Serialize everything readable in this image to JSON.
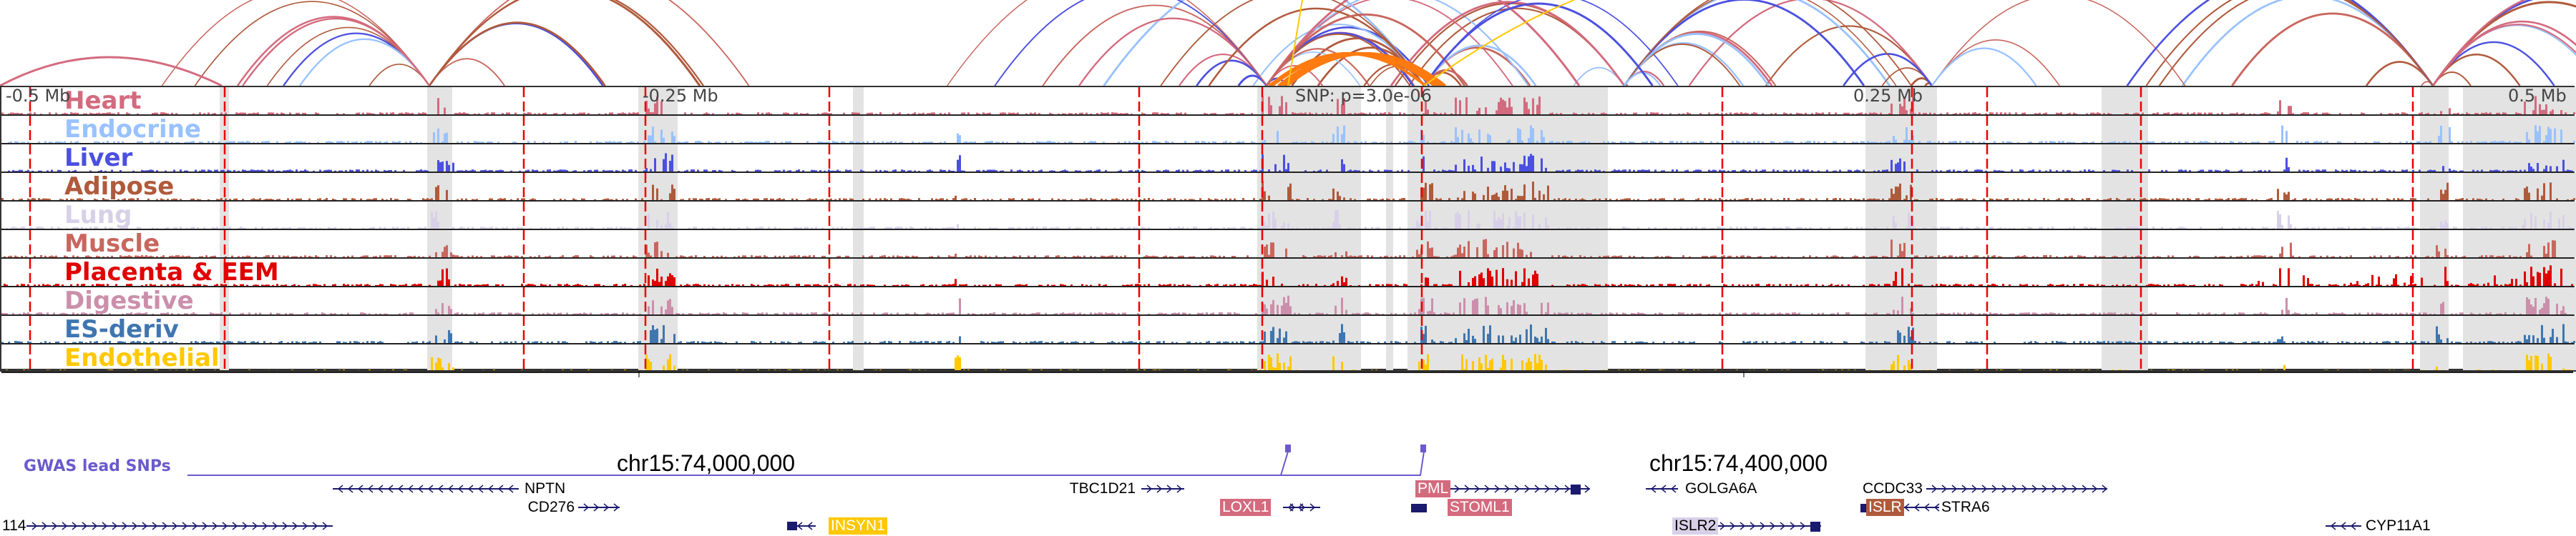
{
  "tracks": [
    {
      "label": "Heart",
      "color": "#d46a7e"
    },
    {
      "label": "Endocrine",
      "color": "#99c2ff"
    },
    {
      "label": "Liver",
      "color": "#4b50e0"
    },
    {
      "label": "Adipose",
      "color": "#b05a3c"
    },
    {
      "label": "Lung",
      "color": "#d8d0e8"
    },
    {
      "label": "Muscle",
      "color": "#c9665e"
    },
    {
      "label": "Placenta & EEM",
      "color": "#e00000"
    },
    {
      "label": "Digestive",
      "color": "#cc8fab"
    },
    {
      "label": "ES-deriv",
      "color": "#3f76b0"
    },
    {
      "label": "Endothelial",
      "color": "#ffc800"
    }
  ],
  "scale": {
    "left": "-0.5 Mb",
    "left_mid": "-0.25 Mb",
    "snp": "SNP: p=3.0e-06",
    "right_mid": "0.25 Mb",
    "right": "0.5 Mb"
  },
  "axis": {
    "tick1": "chr15:74,000,000",
    "tick2": "chr15:74,400,000"
  },
  "gwas": {
    "label": "GWAS lead SNPs",
    "color": "#6a5acd"
  },
  "genes": [
    {
      "name": "NPTN"
    },
    {
      "name": "TBC1D21"
    },
    {
      "name": "PML",
      "highlight": "#d46a7e"
    },
    {
      "name": "GOLGA6A"
    },
    {
      "name": "CCDC33"
    },
    {
      "name": "CD276"
    },
    {
      "name": "LOXL1",
      "highlight": "#d46a7e"
    },
    {
      "name": "STOML1",
      "highlight": "#d46a7e"
    },
    {
      "name": "ISLR",
      "highlight": "#b05a3c"
    },
    {
      "name": "STRA6"
    },
    {
      "name": "114"
    },
    {
      "name": "INSYN1",
      "highlight": "#ffc800"
    },
    {
      "name": "ISLR2",
      "highlight": "#d8d0e8"
    },
    {
      "name": "CYP11A1"
    }
  ]
}
